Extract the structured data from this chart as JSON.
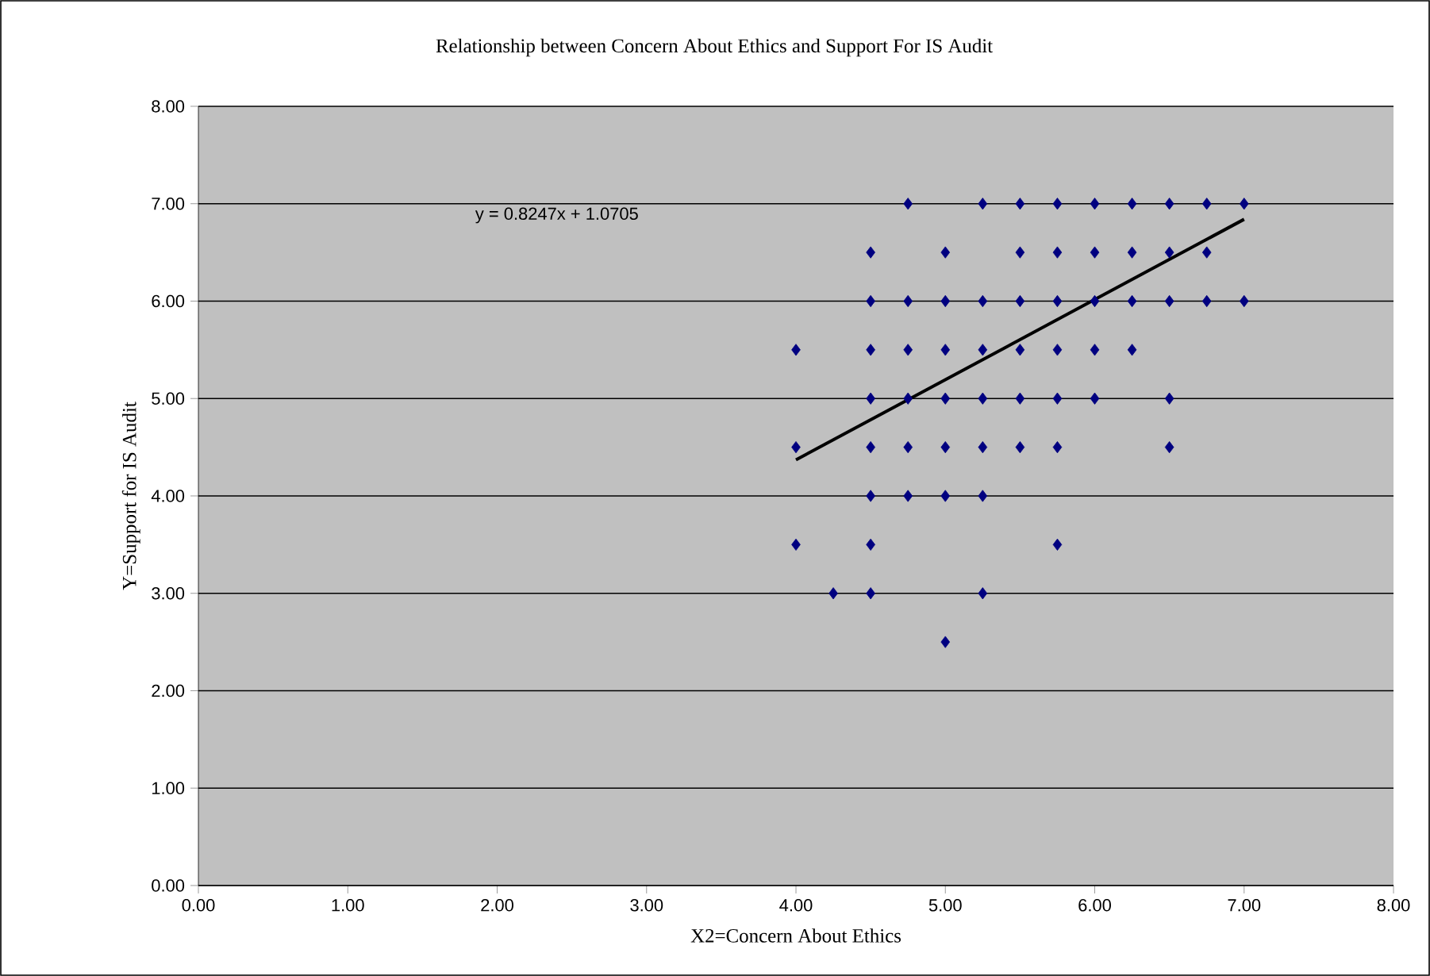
{
  "chart_data": {
    "type": "scatter",
    "title": "Relationship between Concern About Ethics and Support For IS Audit",
    "xlabel": "X2=Concern About Ethics",
    "ylabel": "Y=Support for IS Audit",
    "annotations": [
      "y = 0.8247x + 1.0705"
    ],
    "xlim": [
      0,
      8
    ],
    "ylim": [
      0,
      8
    ],
    "xticks": [
      {
        "value": 0,
        "label": "0.00"
      },
      {
        "value": 1,
        "label": "1.00"
      },
      {
        "value": 2,
        "label": "2.00"
      },
      {
        "value": 3,
        "label": "3.00"
      },
      {
        "value": 4,
        "label": "4.00"
      },
      {
        "value": 5,
        "label": "5.00"
      },
      {
        "value": 6,
        "label": "6.00"
      },
      {
        "value": 7,
        "label": "7.00"
      },
      {
        "value": 8,
        "label": "8.00"
      }
    ],
    "yticks": [
      {
        "value": 0,
        "label": "0.00"
      },
      {
        "value": 1,
        "label": "1.00"
      },
      {
        "value": 2,
        "label": "2.00"
      },
      {
        "value": 3,
        "label": "3.00"
      },
      {
        "value": 4,
        "label": "4.00"
      },
      {
        "value": 5,
        "label": "5.00"
      },
      {
        "value": 6,
        "label": "6.00"
      },
      {
        "value": 7,
        "label": "7.00"
      },
      {
        "value": 8,
        "label": "8.00"
      }
    ],
    "grid": "y",
    "marker": "diamond",
    "series": [
      {
        "color": "#000080",
        "x": [
          4.75,
          5.25,
          5.5,
          5.75,
          6.0,
          6.25,
          6.5,
          6.75,
          7.0,
          4.5,
          5.0,
          5.5,
          5.75,
          6.0,
          6.25,
          6.5,
          6.75,
          4.5,
          4.75,
          5.0,
          5.25,
          5.5,
          5.75,
          6.0,
          6.25,
          6.5,
          6.75,
          7.0,
          4.0,
          4.5,
          4.75,
          5.0,
          5.25,
          5.5,
          5.75,
          6.0,
          6.25,
          4.5,
          4.75,
          5.0,
          5.25,
          5.5,
          5.75,
          6.0,
          6.5,
          4.0,
          4.5,
          4.75,
          5.0,
          5.25,
          5.5,
          5.75,
          6.5,
          4.5,
          4.75,
          5.0,
          5.25,
          4.0,
          4.5,
          5.75,
          4.25,
          4.5,
          5.25,
          5.0
        ],
        "values": [
          7,
          7,
          7,
          7,
          7,
          7,
          7,
          7,
          7,
          6.5,
          6.5,
          6.5,
          6.5,
          6.5,
          6.5,
          6.5,
          6.5,
          6,
          6,
          6,
          6,
          6,
          6,
          6,
          6,
          6,
          6,
          6,
          5.5,
          5.5,
          5.5,
          5.5,
          5.5,
          5.5,
          5.5,
          5.5,
          5.5,
          5,
          5,
          5,
          5,
          5,
          5,
          5,
          5,
          4.5,
          4.5,
          4.5,
          4.5,
          4.5,
          4.5,
          4.5,
          4.5,
          4,
          4,
          4,
          4,
          3.5,
          3.5,
          3.5,
          3,
          3,
          3,
          2.5
        ]
      },
      {
        "type": "line",
        "color": "#000000",
        "marker": "none",
        "x": [
          4,
          7
        ],
        "values": [
          4.37,
          6.84
        ]
      }
    ]
  }
}
